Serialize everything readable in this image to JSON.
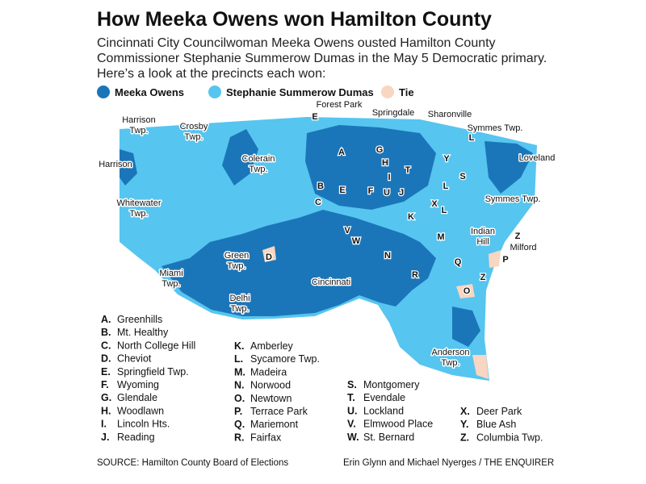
{
  "header": {
    "title": "How Meeka Owens won Hamilton County",
    "subtitle": "Cincinnati City Councilwoman Meeka Owens ousted Hamilton County Commissioner Stephanie Summerow Dumas in the May 5 Democratic primary. Here’s a look at the precincts each won:"
  },
  "legend": [
    {
      "name": "Meeka Owens",
      "color": "#1b76b9"
    },
    {
      "name": "Stephanie Summerow Dumas",
      "color": "#56c5f0"
    },
    {
      "name": "Tie",
      "color": "#f8d6c1"
    }
  ],
  "map_labels": [
    {
      "lines": [
        "Harrison",
        "Twp."
      ]
    },
    {
      "lines": [
        "Crosby",
        "Twp."
      ]
    },
    {
      "lines": [
        "Forest Park"
      ]
    },
    {
      "lines": [
        "Springdale"
      ]
    },
    {
      "lines": [
        "Sharonville"
      ]
    },
    {
      "lines": [
        "Symmes Twp."
      ]
    },
    {
      "lines": [
        "Harrison"
      ]
    },
    {
      "lines": [
        "Colerain",
        "Twp."
      ]
    },
    {
      "lines": [
        "Loveland"
      ]
    },
    {
      "lines": [
        "Whitewater",
        "Twp."
      ]
    },
    {
      "lines": [
        "Symmes Twp."
      ]
    },
    {
      "lines": [
        "Indian",
        "Hill"
      ]
    },
    {
      "lines": [
        "Milford"
      ]
    },
    {
      "lines": [
        "Green",
        "Twp."
      ]
    },
    {
      "lines": [
        "Miami",
        "Twp."
      ]
    },
    {
      "lines": [
        "Cincinnati"
      ]
    },
    {
      "lines": [
        "Delhi",
        "Twp."
      ]
    },
    {
      "lines": [
        "Anderson",
        "Twp."
      ]
    }
  ],
  "map_letters": [
    "E",
    "A",
    "G",
    "H",
    "L",
    "Y",
    "S",
    "I",
    "T",
    "B",
    "E",
    "F",
    "U",
    "J",
    "C",
    "X",
    "L",
    "L",
    "K",
    "V",
    "W",
    "N",
    "M",
    "D",
    "Q",
    "R",
    "O",
    "Z",
    "Z",
    "P"
  ],
  "key": [
    {
      "letter": "A.",
      "name": "Greenhills"
    },
    {
      "letter": "B.",
      "name": "Mt. Healthy"
    },
    {
      "letter": "C.",
      "name": "North College Hill"
    },
    {
      "letter": "D.",
      "name": "Cheviot"
    },
    {
      "letter": "E.",
      "name": "Springfield Twp."
    },
    {
      "letter": "F.",
      "name": "Wyoming"
    },
    {
      "letter": "G.",
      "name": "Glendale"
    },
    {
      "letter": "H.",
      "name": "Woodlawn"
    },
    {
      "letter": "I.",
      "name": "Lincoln Hts."
    },
    {
      "letter": "J.",
      "name": "Reading"
    },
    {
      "letter": "K.",
      "name": "Amberley"
    },
    {
      "letter": "L.",
      "name": "Sycamore Twp."
    },
    {
      "letter": "M.",
      "name": "Madeira"
    },
    {
      "letter": "N.",
      "name": "Norwood"
    },
    {
      "letter": "O.",
      "name": "Newtown"
    },
    {
      "letter": "P.",
      "name": "Terrace Park"
    },
    {
      "letter": "Q.",
      "name": "Mariemont"
    },
    {
      "letter": "R.",
      "name": "Fairfax"
    },
    {
      "letter": "S.",
      "name": "Montgomery"
    },
    {
      "letter": "T.",
      "name": "Evendale"
    },
    {
      "letter": "U.",
      "name": "Lockland"
    },
    {
      "letter": "V.",
      "name": "Elmwood Place"
    },
    {
      "letter": "W.",
      "name": "St. Bernard"
    },
    {
      "letter": "X.",
      "name": "Deer Park"
    },
    {
      "letter": "Y.",
      "name": "Blue Ash"
    },
    {
      "letter": "Z.",
      "name": "Columbia Twp."
    }
  ],
  "footer": {
    "source": "SOURCE: Hamilton County Board of Elections",
    "credit": "Erin Glynn and Michael Nyerges / THE ENQUIRER"
  }
}
